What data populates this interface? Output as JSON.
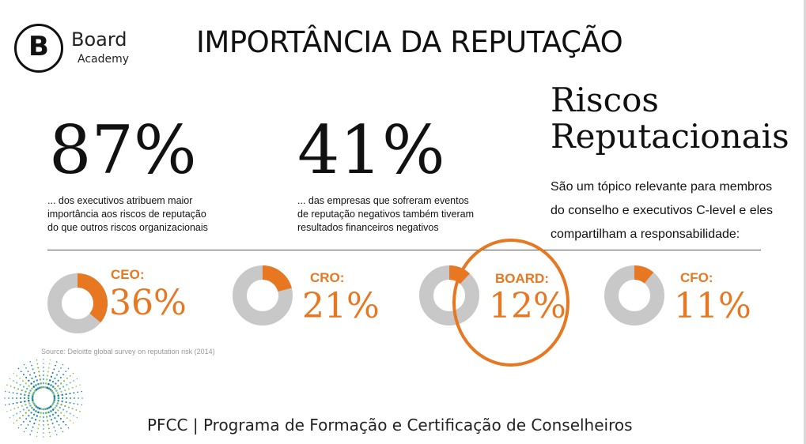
{
  "logo": {
    "word": "Board",
    "sub": "Academy",
    "letter": "B"
  },
  "title": "IMPORTÂNCIA DA REPUTAÇÃO",
  "stats": [
    {
      "value": "87%",
      "lines": [
        "... dos executivos atribuem maior",
        "importância aos riscos de reputação",
        "do que outros riscos organizacionais"
      ]
    },
    {
      "value": "41%",
      "lines": [
        "... das empresas que sofreram eventos",
        "de reputação negativos também tiveram",
        "resultados financeiros negativos"
      ]
    }
  ],
  "risks": {
    "title_lines": [
      "Riscos",
      "Reputacionais"
    ],
    "desc_lines": [
      "São um tópico relevante para membros",
      "do conselho e executivos C-level e eles",
      "compartilham a responsabilidade:"
    ]
  },
  "chart_data": {
    "type": "pie",
    "categories": [
      "CEO:",
      "CRO:",
      "BOARD:",
      "CFO:"
    ],
    "values": [
      36,
      21,
      12,
      11
    ],
    "labels": [
      "36%",
      "21%",
      "12%",
      "11%"
    ],
    "highlighted": "BOARD:"
  },
  "colors": {
    "accent": "#e87722",
    "ring": "#c8c8c8"
  },
  "source": "Source: Deloitte global survey on reputation risk (2014)",
  "footer": "PFCC | Programa de Formação e Certificação de Conselheiros"
}
